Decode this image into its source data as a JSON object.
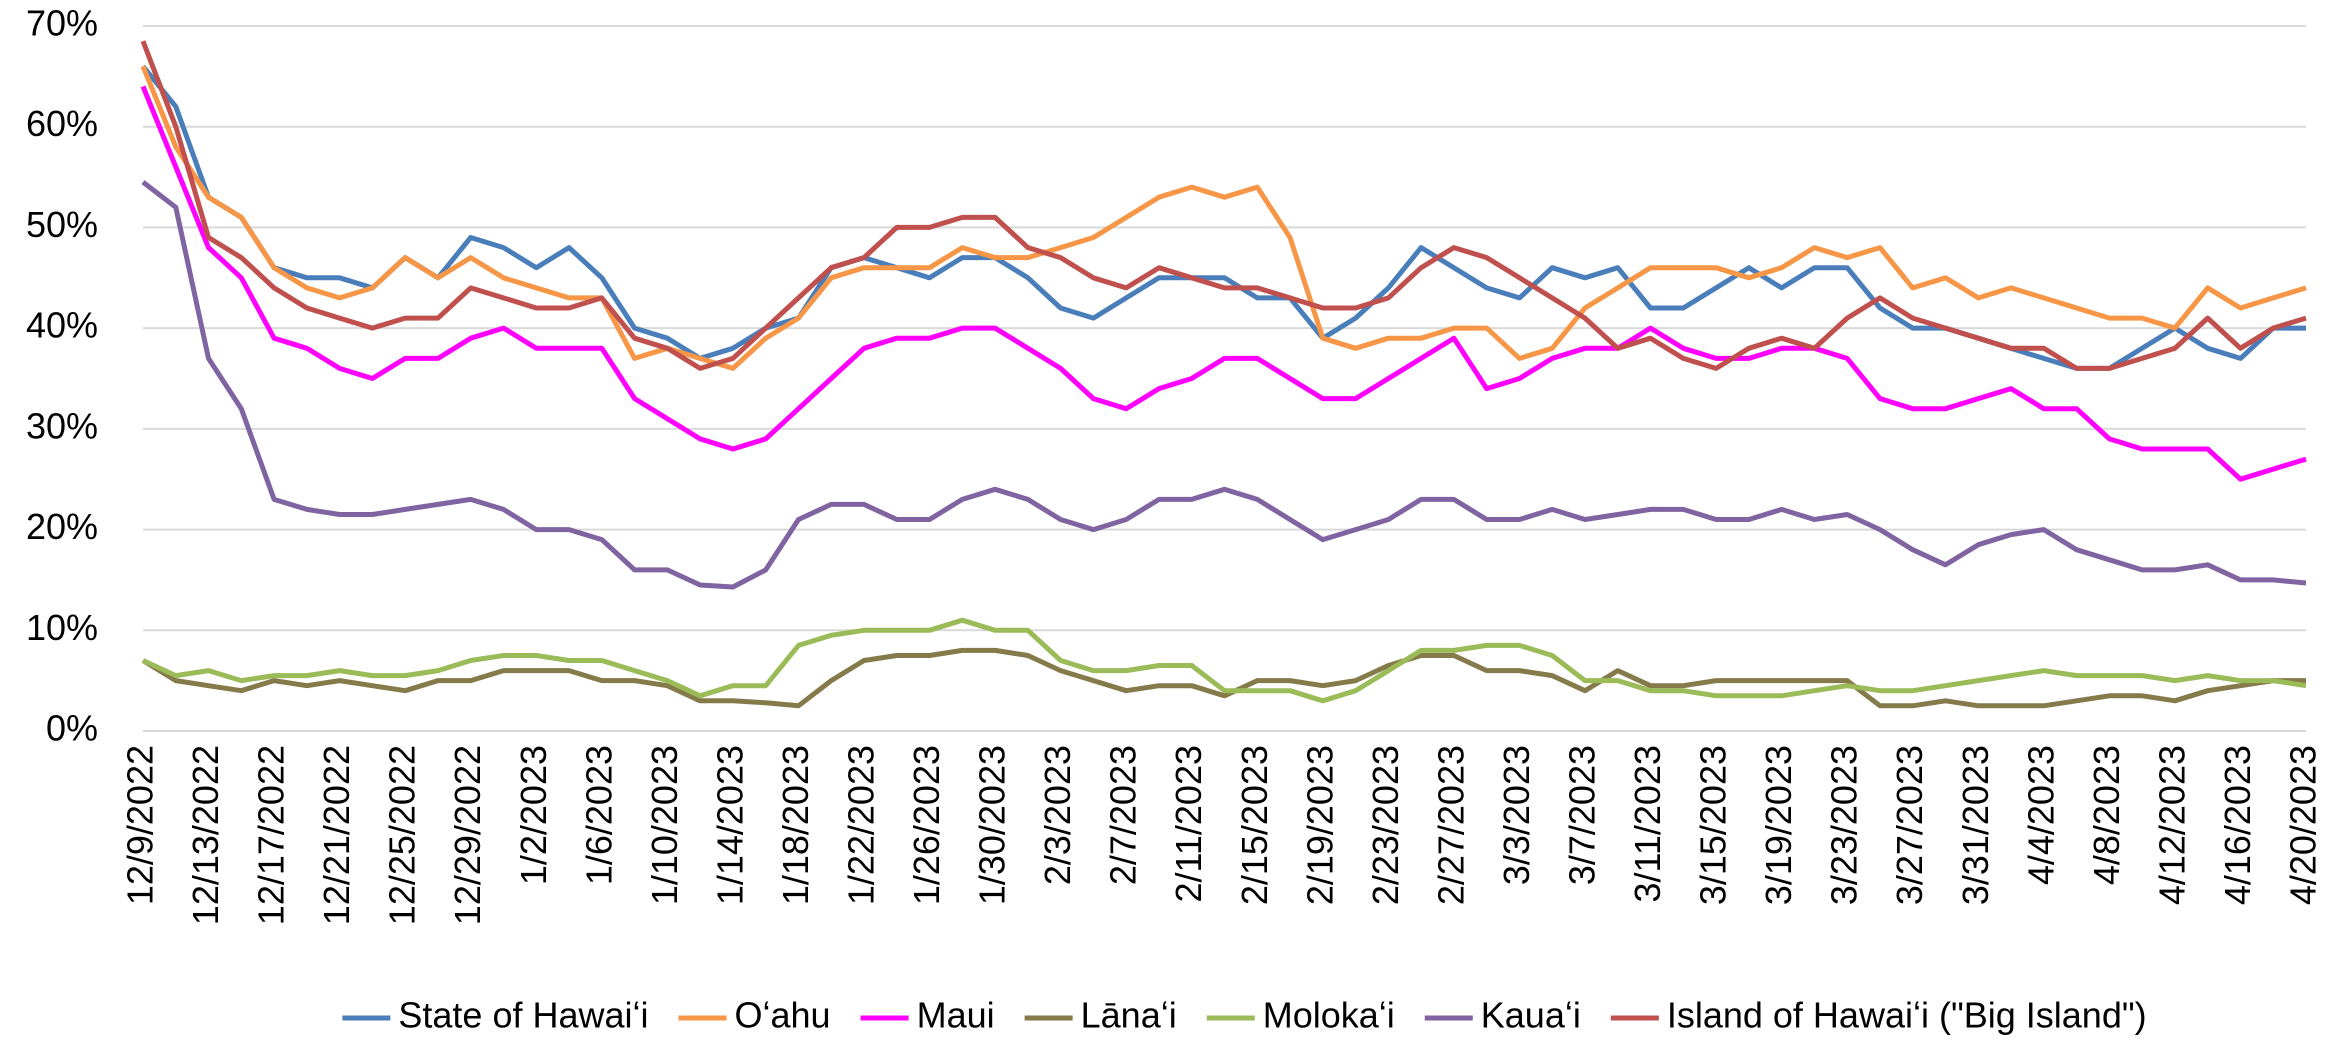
{
  "chart_data": {
    "type": "line",
    "categories": [
      "12/9/2022",
      null,
      "12/13/2022",
      null,
      "12/17/2022",
      null,
      "12/21/2022",
      null,
      "12/25/2022",
      null,
      "12/29/2022",
      null,
      "1/2/2023",
      null,
      "1/6/2023",
      null,
      "1/10/2023",
      null,
      "1/14/2023",
      null,
      "1/18/2023",
      null,
      "1/22/2023",
      null,
      "1/26/2023",
      null,
      "1/30/2023",
      null,
      "2/3/2023",
      null,
      "2/7/2023",
      null,
      "2/11/2023",
      null,
      "2/15/2023",
      null,
      "2/19/2023",
      null,
      "2/23/2023",
      null,
      "2/27/2023",
      null,
      "3/3/2023",
      null,
      "3/7/2023",
      null,
      "3/11/2023",
      null,
      "3/15/2023",
      null,
      "3/19/2023",
      null,
      "3/23/2023",
      null,
      "3/27/2023",
      null,
      "3/31/2023",
      null,
      "4/4/2023",
      null,
      "4/8/2023",
      null,
      "4/12/2023",
      null,
      "4/16/2023",
      null,
      "4/20/2023"
    ],
    "series": [
      {
        "name": "State of Hawaiʻi",
        "color": "#4a7ebb",
        "values": [
          66,
          62,
          53,
          51,
          46,
          45,
          45,
          44,
          47,
          45,
          49,
          48,
          46,
          48,
          45,
          40,
          39,
          37,
          38,
          40,
          41,
          46,
          47,
          46,
          45,
          47,
          47,
          45,
          42,
          41,
          43,
          45,
          45,
          45,
          43,
          43,
          39,
          41,
          44,
          48,
          46,
          44,
          43,
          46,
          45,
          46,
          42,
          42,
          44,
          46,
          44,
          46,
          46,
          42,
          40,
          40,
          39,
          38,
          37,
          36,
          36,
          38,
          40,
          38,
          37,
          40,
          40
        ]
      },
      {
        "name": "Oʻahu",
        "color": "#f79646",
        "values": [
          66,
          58,
          53,
          51,
          46,
          44,
          43,
          44,
          47,
          45,
          47,
          45,
          44,
          43,
          43,
          37,
          38,
          37,
          36,
          39,
          41,
          45,
          46,
          46,
          46,
          48,
          47,
          47,
          48,
          49,
          51,
          53,
          54,
          53,
          54,
          49,
          39,
          38,
          39,
          39,
          40,
          40,
          37,
          38,
          42,
          44,
          46,
          46,
          46,
          45,
          46,
          48,
          47,
          48,
          44,
          45,
          43,
          44,
          43,
          42,
          41,
          41,
          40,
          44,
          42,
          43,
          44
        ]
      },
      {
        "name": "Maui",
        "color": "#ff00ff",
        "values": [
          64,
          56,
          48,
          45,
          39,
          38,
          36,
          35,
          37,
          37,
          39,
          40,
          38,
          38,
          38,
          33,
          31,
          29,
          28,
          29,
          32,
          35,
          38,
          39,
          39,
          40,
          40,
          38,
          36,
          33,
          32,
          34,
          35,
          37,
          37,
          35,
          33,
          33,
          35,
          37,
          39,
          34,
          35,
          37,
          38,
          38,
          40,
          38,
          37,
          37,
          38,
          38,
          37,
          33,
          32,
          32,
          33,
          34,
          32,
          32,
          29,
          28,
          28,
          28,
          25,
          26,
          27
        ]
      },
      {
        "name": "Lānaʻi",
        "color": "#857a4a",
        "values": [
          7,
          5,
          4.5,
          4,
          5,
          4.5,
          5,
          4.5,
          4,
          5,
          5,
          6,
          6,
          6,
          5,
          5,
          4.5,
          3,
          3,
          2.8,
          2.5,
          5,
          7,
          7.5,
          7.5,
          8,
          8,
          7.5,
          6,
          5,
          4,
          4.5,
          4.5,
          3.5,
          5,
          5,
          4.5,
          5,
          6.5,
          7.5,
          7.5,
          6,
          6,
          5.5,
          4,
          6,
          4.5,
          4.5,
          5,
          5,
          5,
          5,
          5,
          2.5,
          2.5,
          3,
          2.5,
          2.5,
          2.5,
          3,
          3.5,
          3.5,
          3,
          4,
          4.5,
          5,
          5
        ]
      },
      {
        "name": "Molokaʻi",
        "color": "#9bbb59",
        "values": [
          7,
          5.5,
          6,
          5,
          5.5,
          5.5,
          6,
          5.5,
          5.5,
          6,
          7,
          7.5,
          7.5,
          7,
          7,
          6,
          5,
          3.5,
          4.5,
          4.5,
          8.5,
          9.5,
          10,
          10,
          10,
          11,
          10,
          10,
          7,
          6,
          6,
          6.5,
          6.5,
          4,
          4,
          4,
          3,
          4,
          6,
          8,
          8,
          8.5,
          8.5,
          7.5,
          5,
          5,
          4,
          4,
          3.5,
          3.5,
          3.5,
          4,
          4.5,
          4,
          4,
          4.5,
          5,
          5.5,
          6,
          5.5,
          5.5,
          5.5,
          5,
          5.5,
          5,
          5,
          4.5
        ]
      },
      {
        "name": "Kauaʻi",
        "color": "#8064a2",
        "values": [
          54.5,
          52,
          37,
          32,
          23,
          22,
          21.5,
          21.5,
          22,
          22.5,
          23,
          22,
          20,
          20,
          19,
          16,
          16,
          14.5,
          14.3,
          16,
          21,
          22.5,
          22.5,
          21,
          21,
          23,
          24,
          23,
          21,
          20,
          21,
          23,
          23,
          24,
          23,
          21,
          19,
          20,
          21,
          23,
          23,
          21,
          21,
          22,
          21,
          21.5,
          22,
          22,
          21,
          21,
          22,
          21,
          21.5,
          20,
          18,
          16.5,
          18.5,
          19.5,
          20,
          18,
          17,
          16,
          16,
          16.5,
          15,
          15,
          14.7
        ]
      },
      {
        "name": "Island of Hawaiʻi (\"Big Island\")",
        "color": "#c0504d",
        "values": [
          68.5,
          60,
          49,
          47,
          44,
          42,
          41,
          40,
          41,
          41,
          44,
          43,
          42,
          42,
          43,
          39,
          38,
          36,
          37,
          40,
          43,
          46,
          47,
          50,
          50,
          51,
          51,
          48,
          47,
          45,
          44,
          46,
          45,
          44,
          44,
          43,
          42,
          42,
          43,
          46,
          48,
          47,
          45,
          43,
          41,
          38,
          39,
          37,
          36,
          38,
          39,
          38,
          41,
          43,
          41,
          40,
          39,
          38,
          38,
          36,
          36,
          37,
          38,
          41,
          38,
          40,
          41
        ]
      }
    ],
    "ylim": [
      0,
      70
    ],
    "yticks": [
      {
        "value": 0,
        "label": "0%"
      },
      {
        "value": 10,
        "label": "10%"
      },
      {
        "value": 20,
        "label": "20%"
      },
      {
        "value": 30,
        "label": "30%"
      },
      {
        "value": 40,
        "label": "40%"
      },
      {
        "value": 50,
        "label": "50%"
      },
      {
        "value": 60,
        "label": "60%"
      },
      {
        "value": 70,
        "label": "70%"
      }
    ],
    "grid": true,
    "legend": "bottom"
  }
}
